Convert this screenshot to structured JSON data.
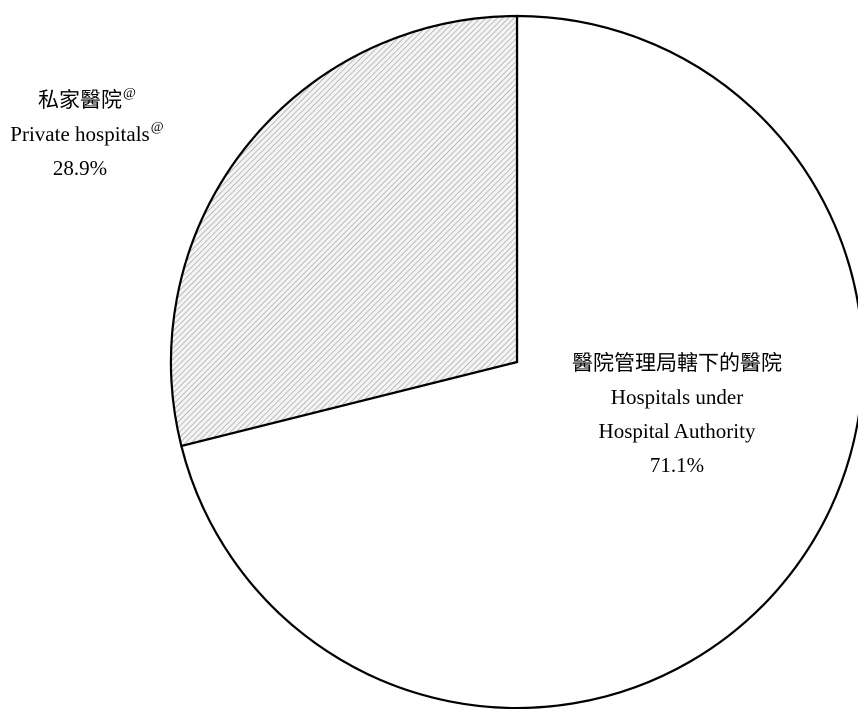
{
  "chart_data": {
    "type": "pie",
    "categories": [
      [
        "醫院管理局轄下的醫院",
        "Hospitals under",
        "Hospital Authority"
      ],
      [
        "私家醫院",
        "Private hospitals"
      ]
    ],
    "category_notes": [
      null,
      "@"
    ],
    "values": [
      71.1,
      28.9
    ],
    "value_labels": [
      "71.1%",
      "28.9%"
    ],
    "colors": [
      "#ffffff",
      "hatch"
    ]
  }
}
